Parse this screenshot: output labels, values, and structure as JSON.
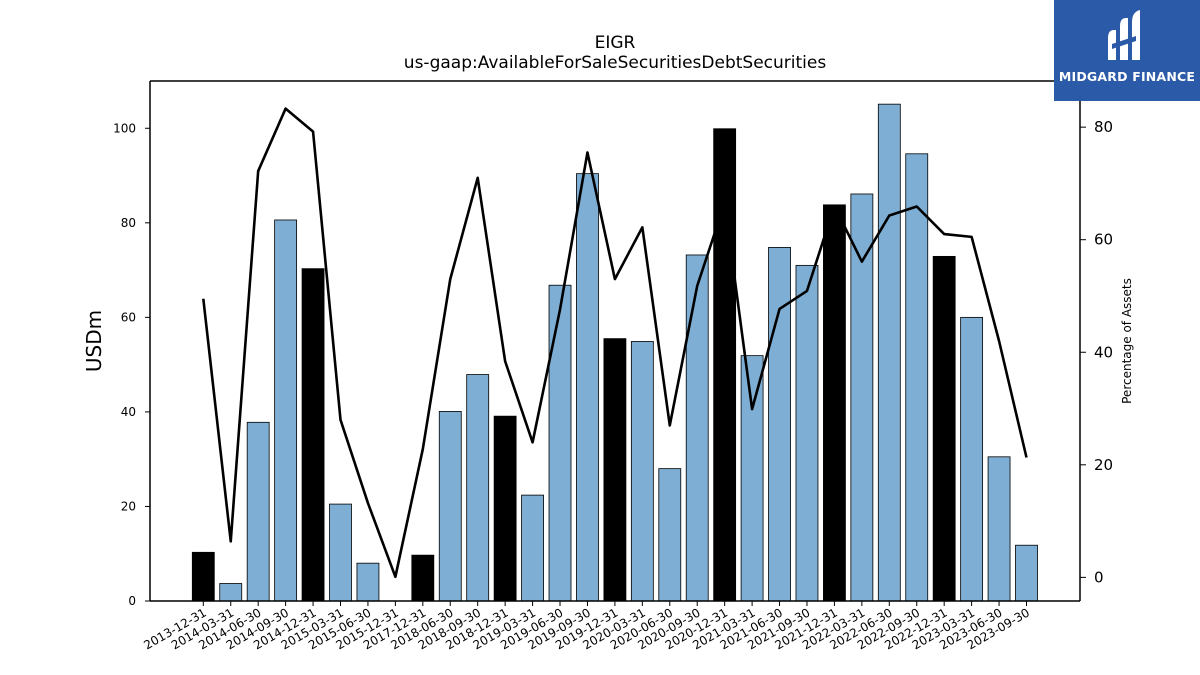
{
  "brand": {
    "name": "MIDGARD FINANCE",
    "color": "#2a5aa8"
  },
  "chart_data": {
    "type": "bar",
    "title": "EIGR",
    "subtitle": "us-gaap:AvailableForSaleSecuritiesDebtSecurities",
    "ylabel": "USDm",
    "y2label": "Percentage of Assets",
    "ylim": [
      0,
      110
    ],
    "y2lim": [
      -4.2,
      88.2
    ],
    "yticks": [
      0,
      20,
      40,
      60,
      80,
      100
    ],
    "y2ticks": [
      0,
      20,
      40,
      60,
      80
    ],
    "colors": {
      "bar": "#7eaed3",
      "bar_highlight": "#000000",
      "line": "#000000"
    },
    "categories": [
      "2013-12-31",
      "2014-03-31",
      "2014-06-30",
      "2014-09-30",
      "2014-12-31",
      "2015-03-31",
      "2015-06-30",
      "2015-12-31",
      "2017-12-31",
      "2018-06-30",
      "2018-09-30",
      "2018-12-31",
      "2019-03-31",
      "2019-06-30",
      "2019-09-30",
      "2019-12-31",
      "2020-03-31",
      "2020-06-30",
      "2020-09-30",
      "2020-12-31",
      "2021-03-31",
      "2021-06-30",
      "2021-09-30",
      "2021-12-31",
      "2022-03-31",
      "2022-06-30",
      "2022-09-30",
      "2022-12-31",
      "2023-03-31",
      "2023-06-30",
      "2023-09-30"
    ],
    "series": [
      {
        "kind": "bar",
        "values": [
          10.3,
          3.7,
          37.8,
          80.6,
          70.3,
          20.5,
          8.0,
          0,
          9.7,
          40.1,
          47.9,
          39.1,
          22.4,
          66.8,
          90.4,
          55.5,
          54.9,
          28.0,
          73.2,
          99.9,
          51.9,
          74.8,
          71.0,
          83.8,
          86.1,
          105.1,
          94.6,
          72.9,
          60.0,
          30.5,
          11.8
        ],
        "highlight": [
          true,
          false,
          false,
          false,
          true,
          false,
          false,
          false,
          true,
          false,
          false,
          true,
          false,
          false,
          false,
          true,
          false,
          false,
          false,
          true,
          false,
          false,
          false,
          true,
          false,
          false,
          false,
          true,
          false,
          false,
          false
        ]
      },
      {
        "kind": "line",
        "axis": "right",
        "values": [
          49.5,
          6.4,
          72.2,
          83.3,
          79.2,
          28.0,
          13.2,
          0.1,
          22.8,
          53.0,
          71.0,
          38.4,
          24.0,
          47.6,
          75.5,
          53.0,
          62.2,
          27.0,
          51.8,
          66.5,
          29.9,
          47.7,
          50.9,
          66.0,
          56.1,
          64.3,
          65.9,
          61.0,
          60.5,
          42.0,
          21.3
        ]
      }
    ]
  }
}
